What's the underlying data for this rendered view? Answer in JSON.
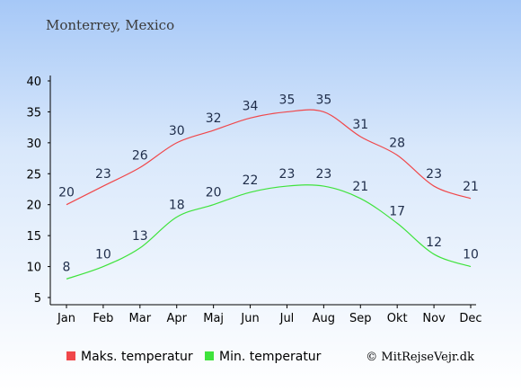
{
  "header": {
    "city": "Monterrey, Mexico"
  },
  "chart_data": {
    "type": "line",
    "categories": [
      "Jan",
      "Feb",
      "Mar",
      "Apr",
      "Maj",
      "Jun",
      "Jul",
      "Aug",
      "Sep",
      "Okt",
      "Nov",
      "Dec"
    ],
    "ylim": [
      5,
      40
    ],
    "yticks": [
      5,
      10,
      15,
      20,
      25,
      30,
      35,
      40
    ],
    "grid": false,
    "legend_position": "bottom",
    "series": [
      {
        "name": "Maks. temperatur",
        "color": "#f0474a",
        "values": [
          20,
          23,
          26,
          30,
          32,
          34,
          35,
          35,
          31,
          28,
          23,
          21
        ]
      },
      {
        "name": "Min. temperatur",
        "color": "#3fe33c",
        "values": [
          8,
          10,
          13,
          18,
          20,
          22,
          23,
          23,
          21,
          17,
          12,
          10
        ]
      }
    ]
  },
  "footer": {
    "credit": "© MitRejseVejr.dk"
  }
}
